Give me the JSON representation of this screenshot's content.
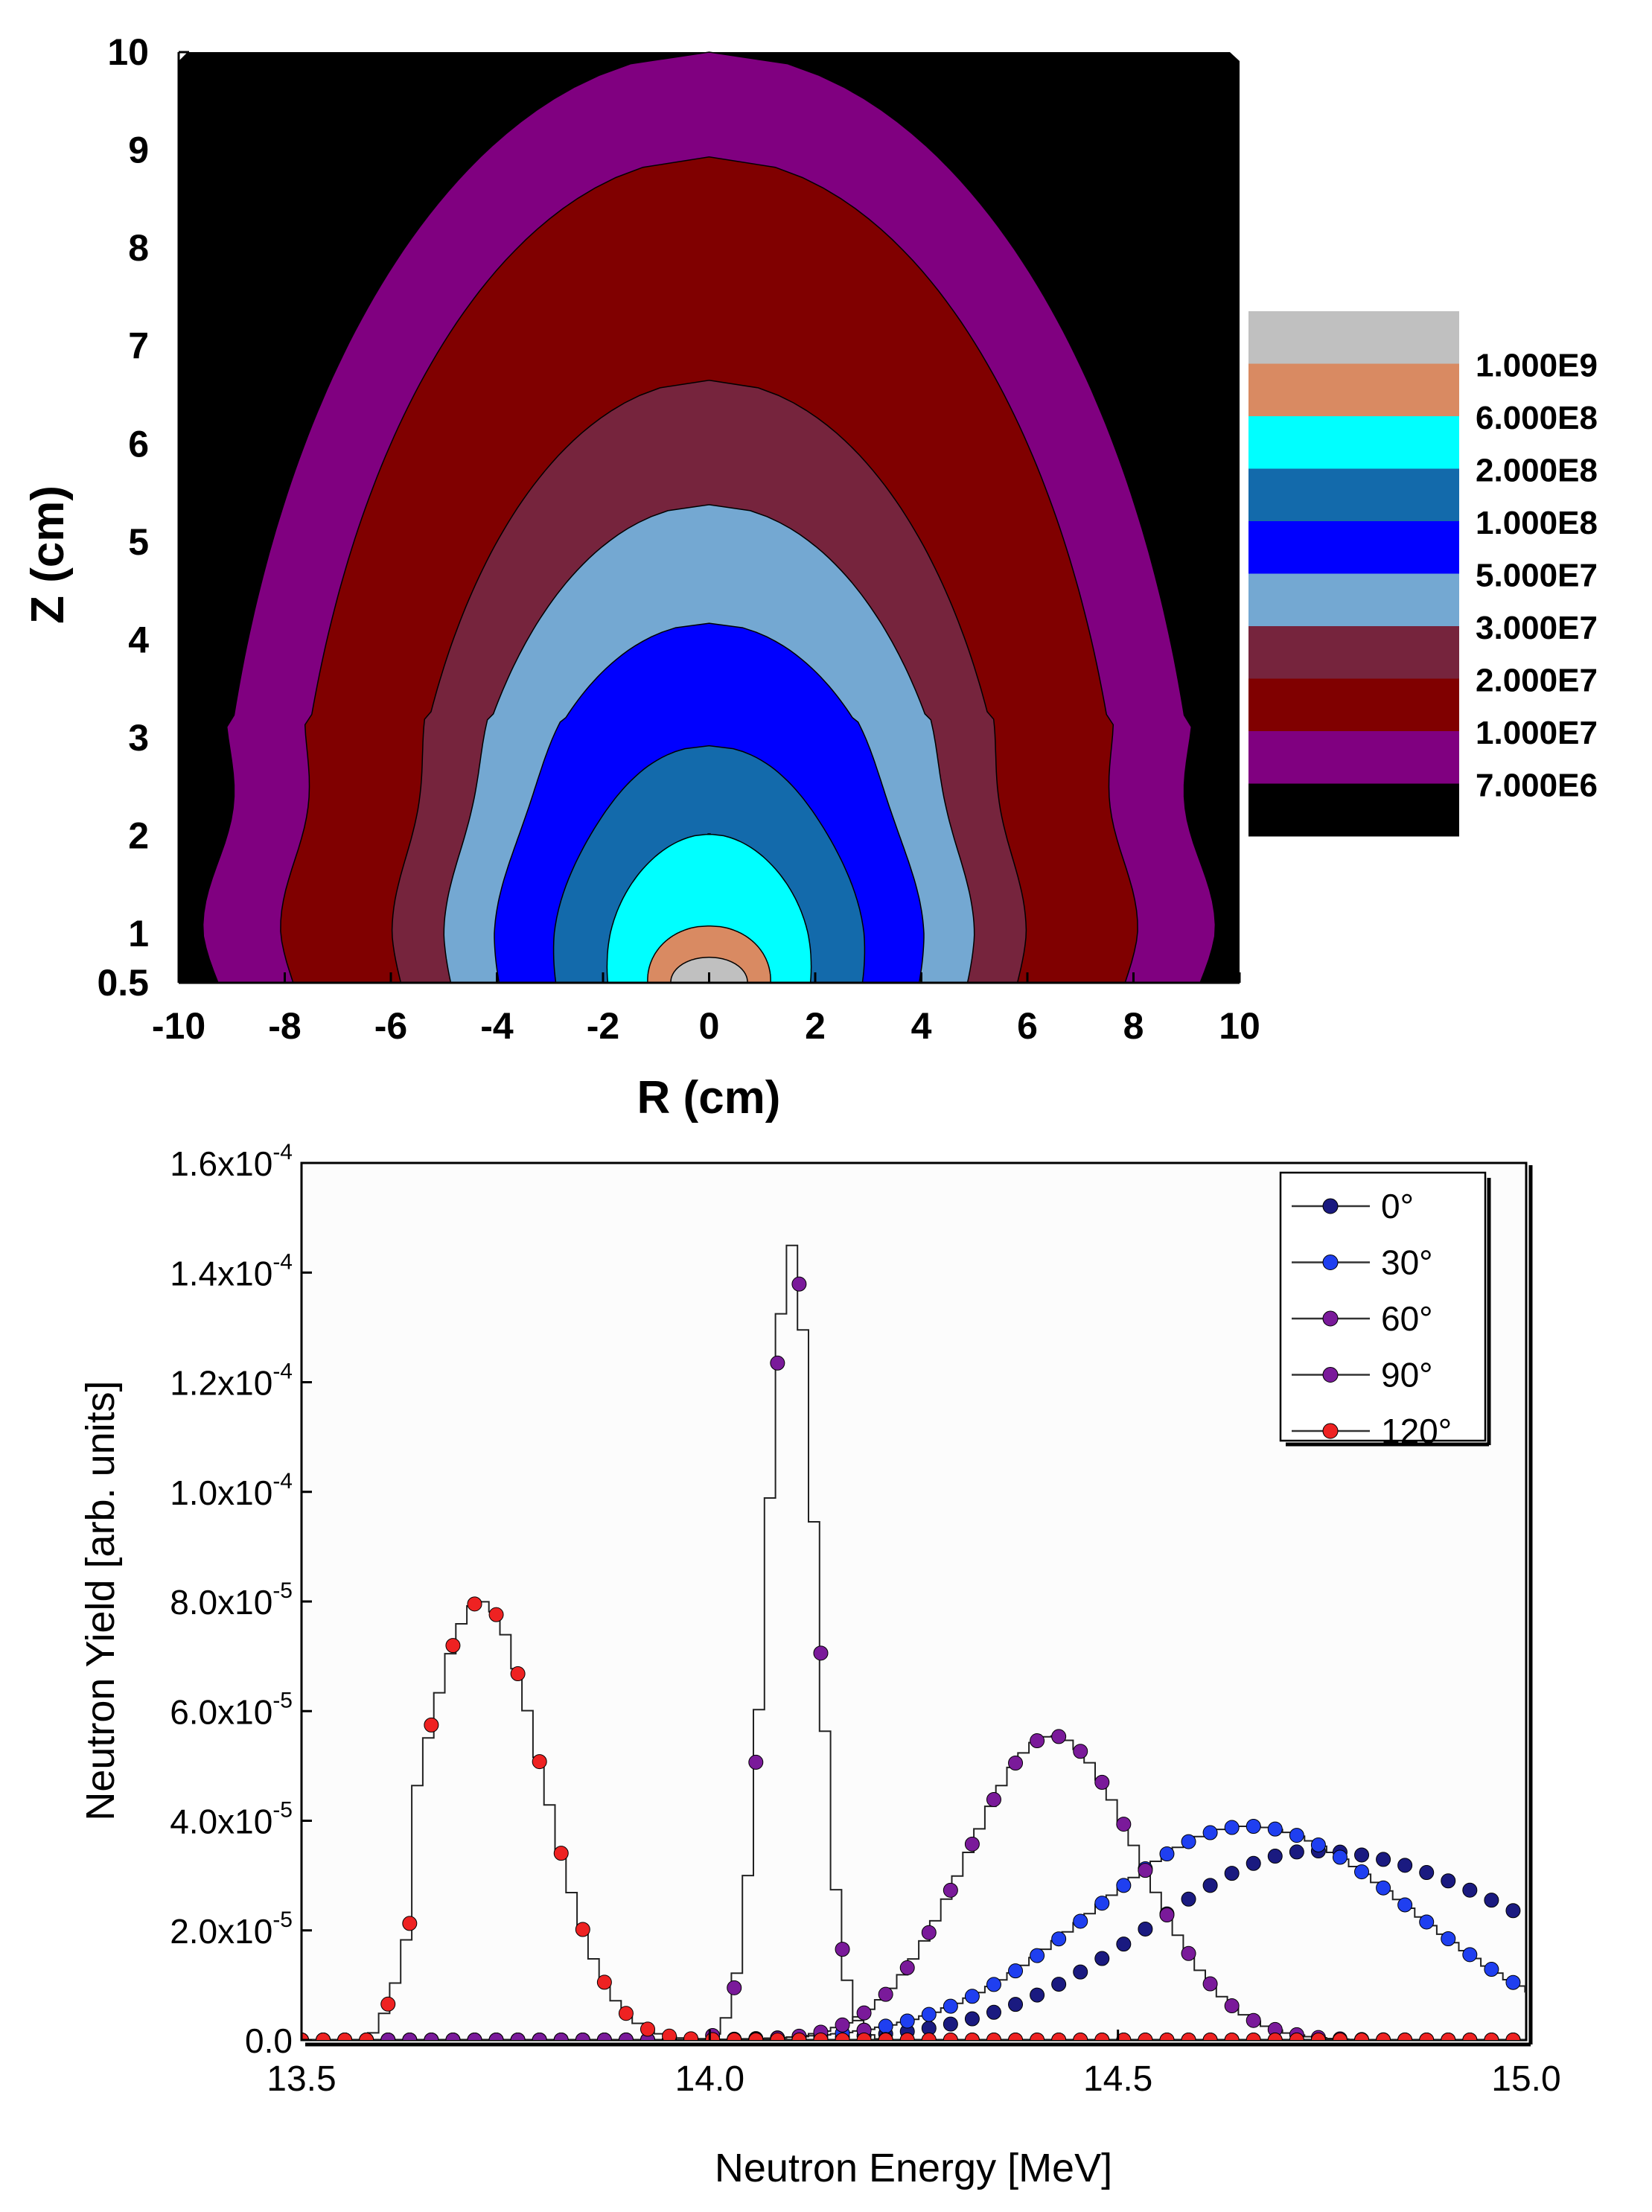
{
  "chart_data": [
    {
      "type": "heatmap",
      "panel": "contour",
      "xlabel": "R (cm)",
      "ylabel": "Z (cm)",
      "xlim": [
        -10,
        10
      ],
      "ylim": [
        0.5,
        10
      ],
      "xticks": [
        "-10",
        "-8",
        "-6",
        "-4",
        "-2",
        "0",
        "2",
        "4",
        "6",
        "8",
        "10"
      ],
      "yticks": [
        "0.5",
        "1",
        "2",
        "3",
        "4",
        "5",
        "6",
        "7",
        "8",
        "9",
        "10"
      ],
      "levels": [
        {
          "label": "1.000E9",
          "color": "#c0c0c0",
          "zmax": 0.76,
          "rbase": 0.73
        },
        {
          "label": "6.000E8",
          "color": "#d98a62",
          "zmax": 1.08,
          "rbase": 1.17
        },
        {
          "label": "2.000E8",
          "color": "#00ffff",
          "zmax": 2.02,
          "rbase": 1.93
        },
        {
          "label": "1.000E8",
          "color": "#136aab",
          "zmax": 2.92,
          "rbase": 2.92
        },
        {
          "label": "5.000E7",
          "color": "#0000ff",
          "zmax": 4.17,
          "rbase": 4.0
        },
        {
          "label": "3.000E7",
          "color": "#74a8d2",
          "zmax": 5.38,
          "rbase": 4.92
        },
        {
          "label": "2.000E7",
          "color": "#76243d",
          "zmax": 6.65,
          "rbase": 5.87
        },
        {
          "label": "1.000E7",
          "color": "#800000",
          "zmax": 8.93,
          "rbase": 7.92
        },
        {
          "label": "7.000E6",
          "color": "#800080",
          "zmax": 10.0,
          "rbase": 9.35
        },
        {
          "label": "",
          "color": "#000000"
        }
      ]
    },
    {
      "type": "line",
      "panel": "spectrum",
      "xlabel": "Neutron Energy [MeV]",
      "ylabel": "Neutron Yield [arb. units]",
      "xlim": [
        13.5,
        15.0
      ],
      "ylim": [
        0,
        0.00016
      ],
      "xticks": [
        "13.5",
        "14.0",
        "14.5",
        "15.0"
      ],
      "yticks": [
        {
          "mant": "0.0",
          "exp": ""
        },
        {
          "mant": "2.0x10",
          "exp": "-5"
        },
        {
          "mant": "4.0x10",
          "exp": "-5"
        },
        {
          "mant": "6.0x10",
          "exp": "-5"
        },
        {
          "mant": "8.0x10",
          "exp": "-5"
        },
        {
          "mant": "1.0x10",
          "exp": "-4"
        },
        {
          "mant": "1.2x10",
          "exp": "-4"
        },
        {
          "mant": "1.4x10",
          "exp": "-4"
        },
        {
          "mant": "1.6x10",
          "exp": "-4"
        }
      ],
      "series": [
        {
          "name": "0°",
          "color": "#1a1a80",
          "mu": 14.74,
          "sigma": 0.2,
          "sigma_right": 0.28,
          "peak": 3.45e-05
        },
        {
          "name": "30°",
          "color": "#1f3ff0",
          "mu": 14.66,
          "sigma": 0.19,
          "sigma_right": 0.2,
          "peak": 3.9e-05
        },
        {
          "name": "60°",
          "color": "#7a1a9a",
          "mu": 14.42,
          "sigma": 0.105,
          "sigma_right": 0.105,
          "peak": 5.55e-05
        },
        {
          "name": "90°",
          "color": "#7a1a9a",
          "mu": 14.1,
          "sigma": 0.03,
          "sigma_right": 0.03,
          "peak": 0.000145
        },
        {
          "name": "120°",
          "color": "#ee2222",
          "mu": 13.72,
          "sigma": 0.075,
          "sigma_right": 0.075,
          "peak": 8e-05
        }
      ]
    }
  ]
}
